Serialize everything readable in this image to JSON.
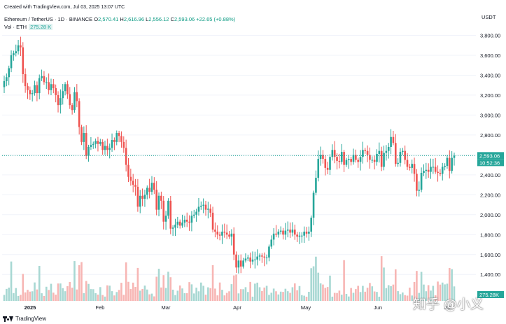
{
  "header": {
    "created": "Created with TradingView.com, Jul 03, 2025 13:07 UTC",
    "symbol": "Ethereum / TetherUS · 1D · BINANCE",
    "o_label": "O",
    "o_value": "2,570.41",
    "h_label": "H",
    "h_value": "2,616.96",
    "l_label": "L",
    "l_value": "2,556.12",
    "c_label": "C",
    "c_value": "2,593.06",
    "change": "+22.65 (+0.88%)",
    "vol_label": "Vol · ETH",
    "vol_value": "275.28 K"
  },
  "footer": {
    "brand": "TradingView"
  },
  "watermark": "知乎 @小义",
  "colors": {
    "up": "#26a69a",
    "down": "#ef5350",
    "vol_up": "#a8d8d3",
    "vol_down": "#f7b6b4",
    "grid": "#f0f3fa"
  },
  "chart_data": {
    "type": "candlestick",
    "title": "",
    "y_axis_label": "USDT",
    "yticks": [
      1400,
      1600,
      1800,
      2000,
      2200,
      2400,
      2600,
      2800,
      3000,
      3200,
      3400,
      3600,
      3800
    ],
    "ytick_labels": [
      "1,400.00",
      "1,600.00",
      "1,800.00",
      "2,000.00",
      "2,200.00",
      "2,400.00",
      "2,600.00",
      "2,800.00",
      "3,000.00",
      "3,200.00",
      "3,400.00",
      "3,600.00",
      "3,800.00"
    ],
    "ylim": [
      1170,
      4000
    ],
    "x_labels": [
      "2025",
      "Feb",
      "Mar",
      "Apr",
      "May",
      "Jun",
      "Jul"
    ],
    "last_price": 2593.06,
    "last_price_label": "2,593.06",
    "countdown": "10:52:36",
    "volume_label": "275.28K",
    "approx_closes": [
      3340,
      3380,
      3470,
      3600,
      3620,
      3640,
      3700,
      3680,
      3410,
      3290,
      3250,
      3210,
      3220,
      3300,
      3220,
      3370,
      3390,
      3330,
      3330,
      3250,
      3310,
      3270,
      3200,
      3100,
      3170,
      3240,
      3310,
      3210,
      3100,
      3050,
      3230,
      3140,
      2880,
      2730,
      2820,
      2590,
      2680,
      2700,
      2710,
      2740,
      2710,
      2730,
      2650,
      2690,
      2650,
      2670,
      2750,
      2730,
      2820,
      2790,
      2730,
      2670,
      2500,
      2380,
      2340,
      2300,
      2280,
      2080,
      2190,
      2160,
      2200,
      2270,
      2230,
      2320,
      2250,
      2050,
      2190,
      2140,
      1930,
      1990,
      2140,
      1860,
      1870,
      1900,
      1930,
      1890,
      1920,
      1950,
      1930,
      1920,
      1990,
      2000,
      2030,
      2080,
      2090,
      2100,
      2050,
      2060,
      2020,
      1850,
      1830,
      1800,
      1790,
      1830,
      1820,
      1800,
      1780,
      1810,
      1600,
      1470,
      1540,
      1480,
      1540,
      1560,
      1570,
      1530,
      1550,
      1550,
      1580,
      1590,
      1580,
      1570,
      1570,
      1680,
      1750,
      1810,
      1800,
      1830,
      1840,
      1800,
      1840,
      1850,
      1820,
      1850,
      1800,
      1780,
      1790,
      1790,
      1830,
      1810,
      1830,
      1970,
      2220,
      2370,
      2560,
      2600,
      2560,
      2470,
      2450,
      2580,
      2650,
      2580,
      2540,
      2530,
      2630,
      2500,
      2550,
      2560,
      2530,
      2600,
      2550,
      2530,
      2580,
      2650,
      2640,
      2600,
      2550,
      2550,
      2530,
      2610,
      2640,
      2480,
      2620,
      2640,
      2680,
      2780,
      2720,
      2510,
      2520,
      2630,
      2640,
      2550,
      2480,
      2470,
      2510,
      2410,
      2240,
      2250,
      2420,
      2440,
      2450,
      2430,
      2480,
      2480,
      2430,
      2420,
      2410,
      2480,
      2490,
      2570,
      2440,
      2570,
      2593
    ]
  }
}
